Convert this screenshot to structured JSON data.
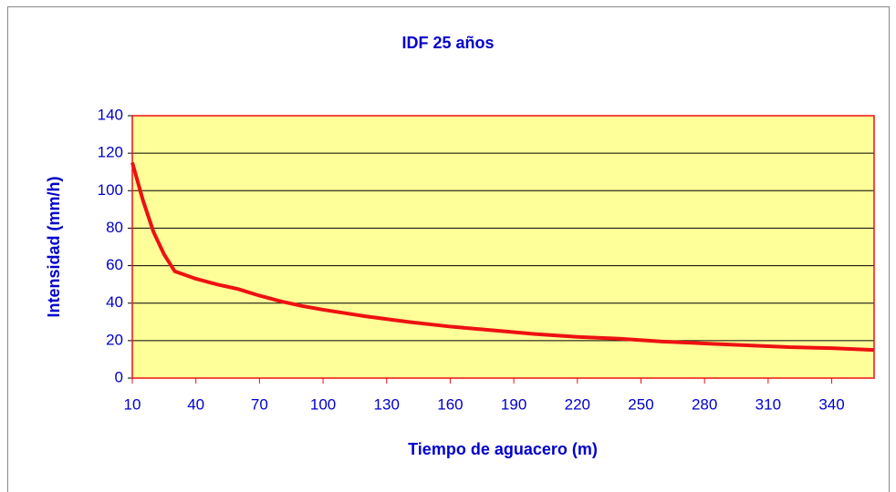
{
  "chart_data": {
    "type": "line",
    "title": "IDF 25 años",
    "x_label": "Tiempo de aguacero (m)",
    "y_label": "Intensidad (mm/h)",
    "x": [
      10,
      15,
      20,
      25,
      30,
      40,
      50,
      60,
      70,
      80,
      90,
      100,
      120,
      140,
      160,
      180,
      200,
      220,
      240,
      260,
      280,
      300,
      320,
      340,
      360
    ],
    "series": [
      {
        "name": "IDF 25 años",
        "color": "#ee1111",
        "values": [
          115,
          95,
          78,
          66,
          57,
          53,
          50,
          47.5,
          44,
          41,
          38.5,
          36.5,
          33,
          30,
          27.5,
          25.5,
          23.5,
          22,
          21,
          19.5,
          18.5,
          17.5,
          16.5,
          16,
          15
        ]
      }
    ],
    "xlim": [
      10,
      360
    ],
    "xticks": [
      10,
      40,
      70,
      100,
      130,
      160,
      190,
      220,
      250,
      280,
      310,
      340
    ],
    "ylim": [
      0,
      140
    ],
    "yticks": [
      0,
      20,
      40,
      60,
      80,
      100,
      120,
      140
    ],
    "grid": true,
    "plot_background": "#ffff99",
    "plot_border": "#ee1111"
  }
}
